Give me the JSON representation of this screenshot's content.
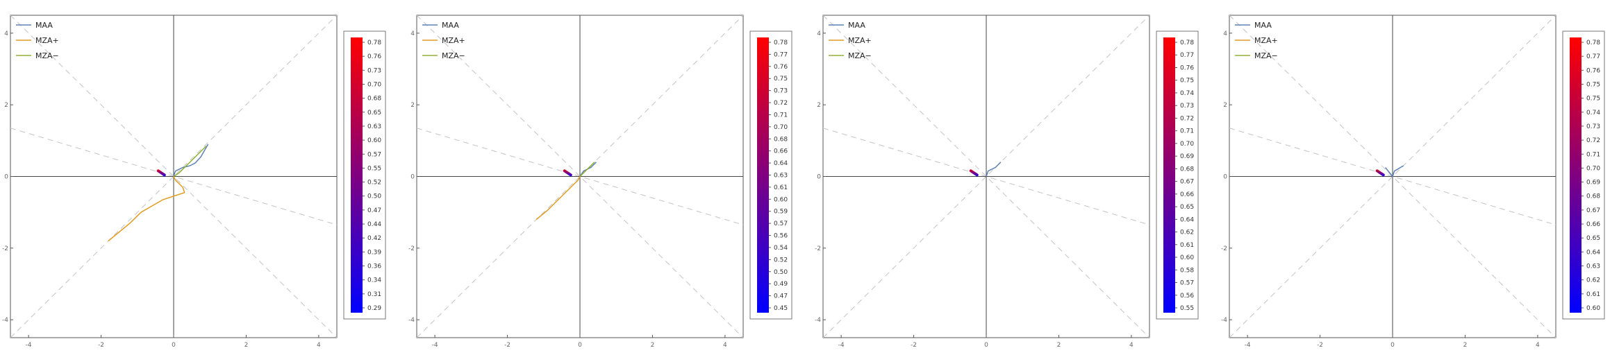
{
  "legend_entries": [
    {
      "label": "MAA",
      "color": "#5e81b5"
    },
    {
      "label": "MZA+",
      "color": "#e19c24"
    },
    {
      "label": "MZA−",
      "color": "#8fb032"
    }
  ],
  "colorbar_gradient": {
    "low": "#0000ff",
    "high": "#ff0000"
  },
  "chart_data": [
    {
      "type": "line",
      "xlim": [
        -4.5,
        4.5
      ],
      "ylim": [
        -4.5,
        4.5
      ],
      "x_ticks": [
        -4,
        -2,
        0,
        2,
        4
      ],
      "y_ticks": [
        -4,
        -2,
        0,
        2,
        4
      ],
      "guide_slopes": [
        1,
        -1,
        -0.3
      ],
      "series": [
        {
          "name": "MAA",
          "points": [
            [
              0.0,
              0.0
            ],
            [
              0.05,
              0.15
            ],
            [
              0.25,
              0.25
            ],
            [
              0.45,
              0.3
            ],
            [
              0.6,
              0.38
            ],
            [
              0.75,
              0.55
            ],
            [
              0.95,
              0.9
            ]
          ]
        },
        {
          "name": "MZA+",
          "points": [
            [
              0.0,
              0.0
            ],
            [
              0.05,
              -0.1
            ],
            [
              0.25,
              -0.3
            ],
            [
              0.3,
              -0.45
            ],
            [
              0.0,
              -0.55
            ],
            [
              -0.3,
              -0.65
            ],
            [
              -0.9,
              -1.0
            ],
            [
              -1.2,
              -1.3
            ],
            [
              -1.8,
              -1.8
            ]
          ]
        },
        {
          "name": "MZA−",
          "points": [
            [
              0.0,
              0.0
            ],
            [
              0.15,
              0.1
            ],
            [
              0.35,
              0.3
            ],
            [
              0.6,
              0.55
            ],
            [
              0.9,
              0.85
            ]
          ]
        }
      ],
      "colorbar_ticks": [
        "0.78",
        "0.76",
        "0.73",
        "0.70",
        "0.68",
        "0.65",
        "0.63",
        "0.60",
        "0.57",
        "0.55",
        "0.52",
        "0.50",
        "0.47",
        "0.44",
        "0.42",
        "0.39",
        "0.36",
        "0.34",
        "0.31",
        "0.29"
      ]
    },
    {
      "type": "line",
      "xlim": [
        -4.5,
        4.5
      ],
      "ylim": [
        -4.5,
        4.5
      ],
      "x_ticks": [
        -4,
        -2,
        0,
        2,
        4
      ],
      "y_ticks": [
        -4,
        -2,
        0,
        2,
        4
      ],
      "guide_slopes": [
        1,
        -1,
        -0.3
      ],
      "series": [
        {
          "name": "MAA",
          "points": [
            [
              0.0,
              0.0
            ],
            [
              0.1,
              0.15
            ],
            [
              0.3,
              0.25
            ],
            [
              0.45,
              0.4
            ]
          ]
        },
        {
          "name": "MZA+",
          "points": [
            [
              0.0,
              0.0
            ],
            [
              -0.05,
              -0.1
            ],
            [
              -0.2,
              -0.25
            ],
            [
              -0.5,
              -0.55
            ],
            [
              -0.9,
              -0.95
            ],
            [
              -1.2,
              -1.2
            ]
          ]
        },
        {
          "name": "MZA−",
          "points": [
            [
              0.0,
              0.0
            ],
            [
              0.2,
              0.2
            ],
            [
              0.4,
              0.4
            ]
          ]
        }
      ],
      "colorbar_ticks": [
        "0.78",
        "0.77",
        "0.76",
        "0.75",
        "0.73",
        "0.72",
        "0.71",
        "0.70",
        "0.68",
        "0.66",
        "0.64",
        "0.63",
        "0.61",
        "0.60",
        "0.59",
        "0.57",
        "0.56",
        "0.54",
        "0.52",
        "0.50",
        "0.49",
        "0.47",
        "0.45"
      ]
    },
    {
      "type": "line",
      "xlim": [
        -4.5,
        4.5
      ],
      "ylim": [
        -4.5,
        4.5
      ],
      "x_ticks": [
        -4,
        -2,
        0,
        2,
        4
      ],
      "y_ticks": [
        -4,
        -2,
        0,
        2,
        4
      ],
      "guide_slopes": [
        1,
        -1,
        -0.3
      ],
      "series": [
        {
          "name": "MAA",
          "points": [
            [
              0.0,
              0.0
            ],
            [
              0.05,
              0.15
            ],
            [
              0.25,
              0.25
            ],
            [
              0.4,
              0.4
            ]
          ]
        },
        {
          "name": "MZA+",
          "points": []
        },
        {
          "name": "MZA−",
          "points": []
        }
      ],
      "colorbar_ticks": [
        "0.78",
        "0.77",
        "0.76",
        "0.75",
        "0.74",
        "0.73",
        "0.72",
        "0.71",
        "0.70",
        "0.69",
        "0.68",
        "0.67",
        "0.66",
        "0.65",
        "0.64",
        "0.62",
        "0.61",
        "0.60",
        "0.58",
        "0.57",
        "0.56",
        "0.55"
      ]
    },
    {
      "type": "line",
      "xlim": [
        -4.5,
        4.5
      ],
      "ylim": [
        -4.5,
        4.5
      ],
      "x_ticks": [
        -4,
        -2,
        0,
        2,
        4
      ],
      "y_ticks": [
        -4,
        -2,
        0,
        2,
        4
      ],
      "guide_slopes": [
        1,
        -1,
        -0.3
      ],
      "series": [
        {
          "name": "MAA",
          "points": [
            [
              -0.2,
              0.25
            ],
            [
              0.0,
              0.0
            ],
            [
              0.05,
              0.15
            ],
            [
              0.3,
              0.3
            ]
          ]
        },
        {
          "name": "MZA+",
          "points": []
        },
        {
          "name": "MZA−",
          "points": []
        }
      ],
      "colorbar_ticks": [
        "0.78",
        "0.77",
        "0.76",
        "0.75",
        "0.75",
        "0.74",
        "0.73",
        "0.72",
        "0.71",
        "0.70",
        "0.69",
        "0.68",
        "0.67",
        "0.66",
        "0.65",
        "0.64",
        "0.63",
        "0.62",
        "0.61",
        "0.60"
      ]
    }
  ]
}
